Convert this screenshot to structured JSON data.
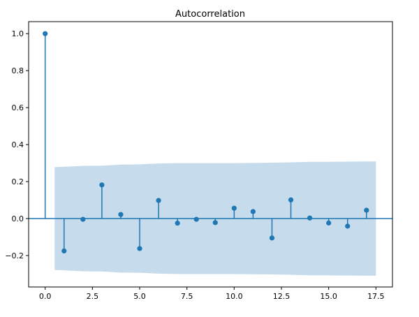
{
  "chart_data": {
    "type": "stem",
    "title": "Autocorrelation",
    "xlabel": "",
    "ylabel": "",
    "xlim": [
      -0.875,
      18.375
    ],
    "ylim": [
      -0.37,
      1.065
    ],
    "xticks": [
      0.0,
      2.5,
      5.0,
      7.5,
      10.0,
      12.5,
      15.0,
      17.5
    ],
    "xtick_labels": [
      "0.0",
      "2.5",
      "5.0",
      "7.5",
      "10.0",
      "12.5",
      "15.0",
      "17.5"
    ],
    "yticks": [
      -0.2,
      0.0,
      0.2,
      0.4,
      0.6,
      0.8,
      1.0
    ],
    "ytick_labels": [
      "−0.2",
      "0.0",
      "0.2",
      "0.4",
      "0.6",
      "0.8",
      "1.0"
    ],
    "lags": [
      0,
      1,
      2,
      3,
      4,
      5,
      6,
      7,
      8,
      9,
      10,
      11,
      12,
      13,
      14,
      15,
      16,
      17
    ],
    "values": [
      1.0,
      -0.175,
      -0.004,
      0.182,
      0.022,
      -0.162,
      0.098,
      -0.025,
      -0.004,
      -0.022,
      0.056,
      0.038,
      -0.105,
      0.101,
      0.003,
      -0.024,
      -0.041,
      0.045
    ],
    "confidence_band": {
      "x": [
        0.5,
        1,
        2,
        3,
        4,
        5,
        6,
        7,
        8,
        9,
        10,
        11,
        12,
        13,
        14,
        15,
        16,
        17,
        17.5
      ],
      "upper": [
        0.278,
        0.28,
        0.285,
        0.286,
        0.292,
        0.293,
        0.298,
        0.3,
        0.3,
        0.3,
        0.3,
        0.301,
        0.302,
        0.304,
        0.307,
        0.307,
        0.308,
        0.309,
        0.309
      ],
      "lower": [
        -0.278,
        -0.28,
        -0.285,
        -0.286,
        -0.292,
        -0.293,
        -0.298,
        -0.3,
        -0.3,
        -0.3,
        -0.3,
        -0.301,
        -0.302,
        -0.304,
        -0.307,
        -0.307,
        -0.308,
        -0.309,
        -0.309
      ]
    },
    "grid": false,
    "colors": {
      "stem": "#1f77b4",
      "band": "#c6dbec",
      "zero_line": "#1f77b4",
      "axes": "#000000"
    }
  }
}
